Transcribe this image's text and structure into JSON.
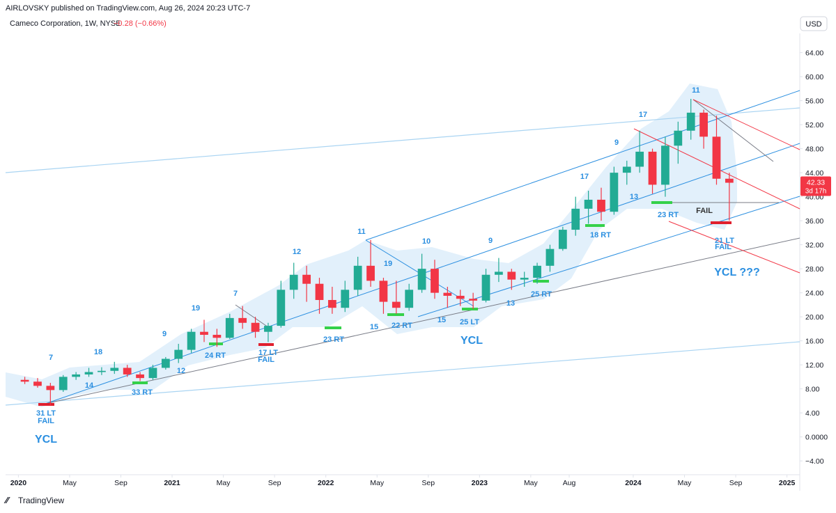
{
  "header": {
    "published": "AIRLOVSKY published on TradingView.com, Aug 26, 2024 20:23 UTC-7",
    "symbol": "Cameco Corporation, 1W, NYSE",
    "change": "−0.28 (−0.66%)",
    "currency": "USD",
    "countdown": "3d 17h",
    "brand": "TradingView"
  },
  "chart_data": {
    "type": "candlestick",
    "up_color": "#22ab94",
    "down_color": "#f23645",
    "x": [
      "2020-01",
      "2020-02",
      "2020-03",
      "2020-04",
      "2020-05",
      "2020-06",
      "2020-07",
      "2020-08",
      "2020-09",
      "2020-10",
      "2020-11",
      "2020-12",
      "2021-01",
      "2021-02",
      "2021-03",
      "2021-04",
      "2021-05",
      "2021-06",
      "2021-07",
      "2021-08",
      "2021-09",
      "2021-10",
      "2021-11",
      "2021-12",
      "2022-01",
      "2022-02",
      "2022-03",
      "2022-04",
      "2022-05",
      "2022-06",
      "2022-07",
      "2022-08",
      "2022-09",
      "2022-10",
      "2022-11",
      "2022-12",
      "2023-01",
      "2023-02",
      "2023-03",
      "2023-04",
      "2023-05",
      "2023-06",
      "2023-07",
      "2023-08",
      "2023-09",
      "2023-10",
      "2023-11",
      "2023-12",
      "2024-01",
      "2024-02",
      "2024-03",
      "2024-04",
      "2024-05",
      "2024-06",
      "2024-07",
      "2024-08"
    ],
    "open": [
      9.5,
      9.2,
      8.5,
      7.8,
      10,
      10.4,
      10.8,
      11,
      11.5,
      10.4,
      9.8,
      11.5,
      13,
      14.5,
      17.5,
      17,
      16.5,
      19.8,
      19,
      17.5,
      18.5,
      24.5,
      27,
      25.5,
      22.8,
      21.5,
      24.5,
      28.5,
      26,
      22.5,
      21.5,
      24.5,
      28,
      24,
      23.5,
      23,
      22.7,
      27,
      27.5,
      26.2,
      26.5,
      28.5,
      31.3,
      34.5,
      38,
      39.5,
      37.5,
      44,
      45,
      47.5,
      42,
      48.5,
      51,
      54,
      50,
      43
    ],
    "high": [
      10,
      9.8,
      9,
      10.3,
      10.8,
      11.5,
      11.6,
      12.5,
      12,
      10.8,
      12,
      13.3,
      15.5,
      18,
      19.5,
      18,
      20.5,
      21.8,
      20,
      19,
      26,
      29,
      28.5,
      26.5,
      25,
      26,
      30,
      32.8,
      26.5,
      26,
      25.5,
      30.5,
      29.5,
      25,
      24.5,
      24,
      28,
      29.8,
      28,
      27.5,
      29,
      32,
      35,
      40,
      41,
      41.5,
      45,
      46,
      51,
      48,
      50,
      52.5,
      56.3,
      54.5,
      53.5,
      44
    ],
    "low": [
      8.8,
      8.2,
      5.3,
      7.5,
      9.5,
      10,
      10.3,
      10.5,
      10,
      9.3,
      9.5,
      11.2,
      12.3,
      14,
      15.8,
      15,
      16.3,
      18,
      16.5,
      15.8,
      18.2,
      23,
      22.5,
      20.5,
      20.5,
      20.8,
      23.5,
      25,
      20.5,
      20.5,
      21,
      24,
      23,
      21.5,
      21.8,
      21.3,
      22.4,
      25.8,
      24.5,
      25,
      25.5,
      27.5,
      31,
      33.5,
      35.5,
      36,
      37,
      42,
      44,
      40.5,
      40,
      45.5,
      49.5,
      48,
      42,
      36
    ],
    "close": [
      9.2,
      8.5,
      7.8,
      10,
      10.4,
      10.8,
      11,
      11.5,
      10.4,
      9.8,
      11.5,
      13,
      14.5,
      17.5,
      17,
      16.5,
      19.8,
      19,
      17.5,
      18.5,
      24.5,
      27,
      25.5,
      22.8,
      21.5,
      24.5,
      28.5,
      26,
      22.5,
      21.5,
      24.5,
      28,
      24,
      23.5,
      23,
      22.7,
      27,
      27.5,
      26.2,
      26.5,
      28.5,
      31.3,
      34.5,
      38,
      39.5,
      37.5,
      44,
      45,
      47.5,
      42,
      48.5,
      51,
      54,
      50,
      43,
      42.33
    ],
    "xlim": [
      "2019-12",
      "2025-02"
    ],
    "xticks": [
      {
        "value": "2020-01",
        "label": "2020"
      },
      {
        "value": "2020-05",
        "label": "May"
      },
      {
        "value": "2020-09",
        "label": "Sep"
      },
      {
        "value": "2021-01",
        "label": "2021"
      },
      {
        "value": "2021-05",
        "label": "May"
      },
      {
        "value": "2021-09",
        "label": "Sep"
      },
      {
        "value": "2022-01",
        "label": "2022"
      },
      {
        "value": "2022-05",
        "label": "May"
      },
      {
        "value": "2022-09",
        "label": "Sep"
      },
      {
        "value": "2023-01",
        "label": "2023"
      },
      {
        "value": "2023-05",
        "label": "May"
      },
      {
        "value": "2023-08",
        "label": "Aug"
      },
      {
        "value": "2024-01",
        "label": "2024"
      },
      {
        "value": "2024-05",
        "label": "May"
      },
      {
        "value": "2024-09",
        "label": "Sep"
      },
      {
        "value": "2025-01",
        "label": "2025"
      }
    ],
    "ylim": [
      -6.3,
      67.2
    ],
    "yticks": [
      {
        "value": 64,
        "label": "64.00"
      },
      {
        "value": 60,
        "label": "60.00"
      },
      {
        "value": 56,
        "label": "56.00"
      },
      {
        "value": 52,
        "label": "52.00"
      },
      {
        "value": 48,
        "label": "48.00"
      },
      {
        "value": 44,
        "label": "44.00"
      },
      {
        "value": 40,
        "label": "40.00"
      },
      {
        "value": 36,
        "label": "36.00"
      },
      {
        "value": 32,
        "label": "32.00"
      },
      {
        "value": 28,
        "label": "28.00"
      },
      {
        "value": 24,
        "label": "24.00"
      },
      {
        "value": 20,
        "label": "20.00"
      },
      {
        "value": 16,
        "label": "16.00"
      },
      {
        "value": 12,
        "label": "12.00"
      },
      {
        "value": 8,
        "label": "8.00"
      },
      {
        "value": 4,
        "label": "4.00"
      },
      {
        "value": 0,
        "label": "0.0000"
      },
      {
        "value": -4,
        "label": "−4.00"
      }
    ],
    "grid": false
  },
  "annotations": [
    "7",
    "18",
    "14",
    "33 RT",
    "31 LT",
    "FAIL",
    "YCL",
    "9",
    "19",
    "12",
    "24 RT",
    "7",
    "17 LT",
    "FAIL",
    "12",
    "23 RT",
    "11",
    "19",
    "15",
    "22 RT",
    "10",
    "15",
    "25 LT",
    "YCL",
    "9",
    "13",
    "25 RT",
    "17",
    "18 RT",
    "9",
    "13",
    "17",
    "23 RT",
    "11",
    "FAIL",
    "21 LT",
    "FAIL",
    "YCL ???"
  ]
}
